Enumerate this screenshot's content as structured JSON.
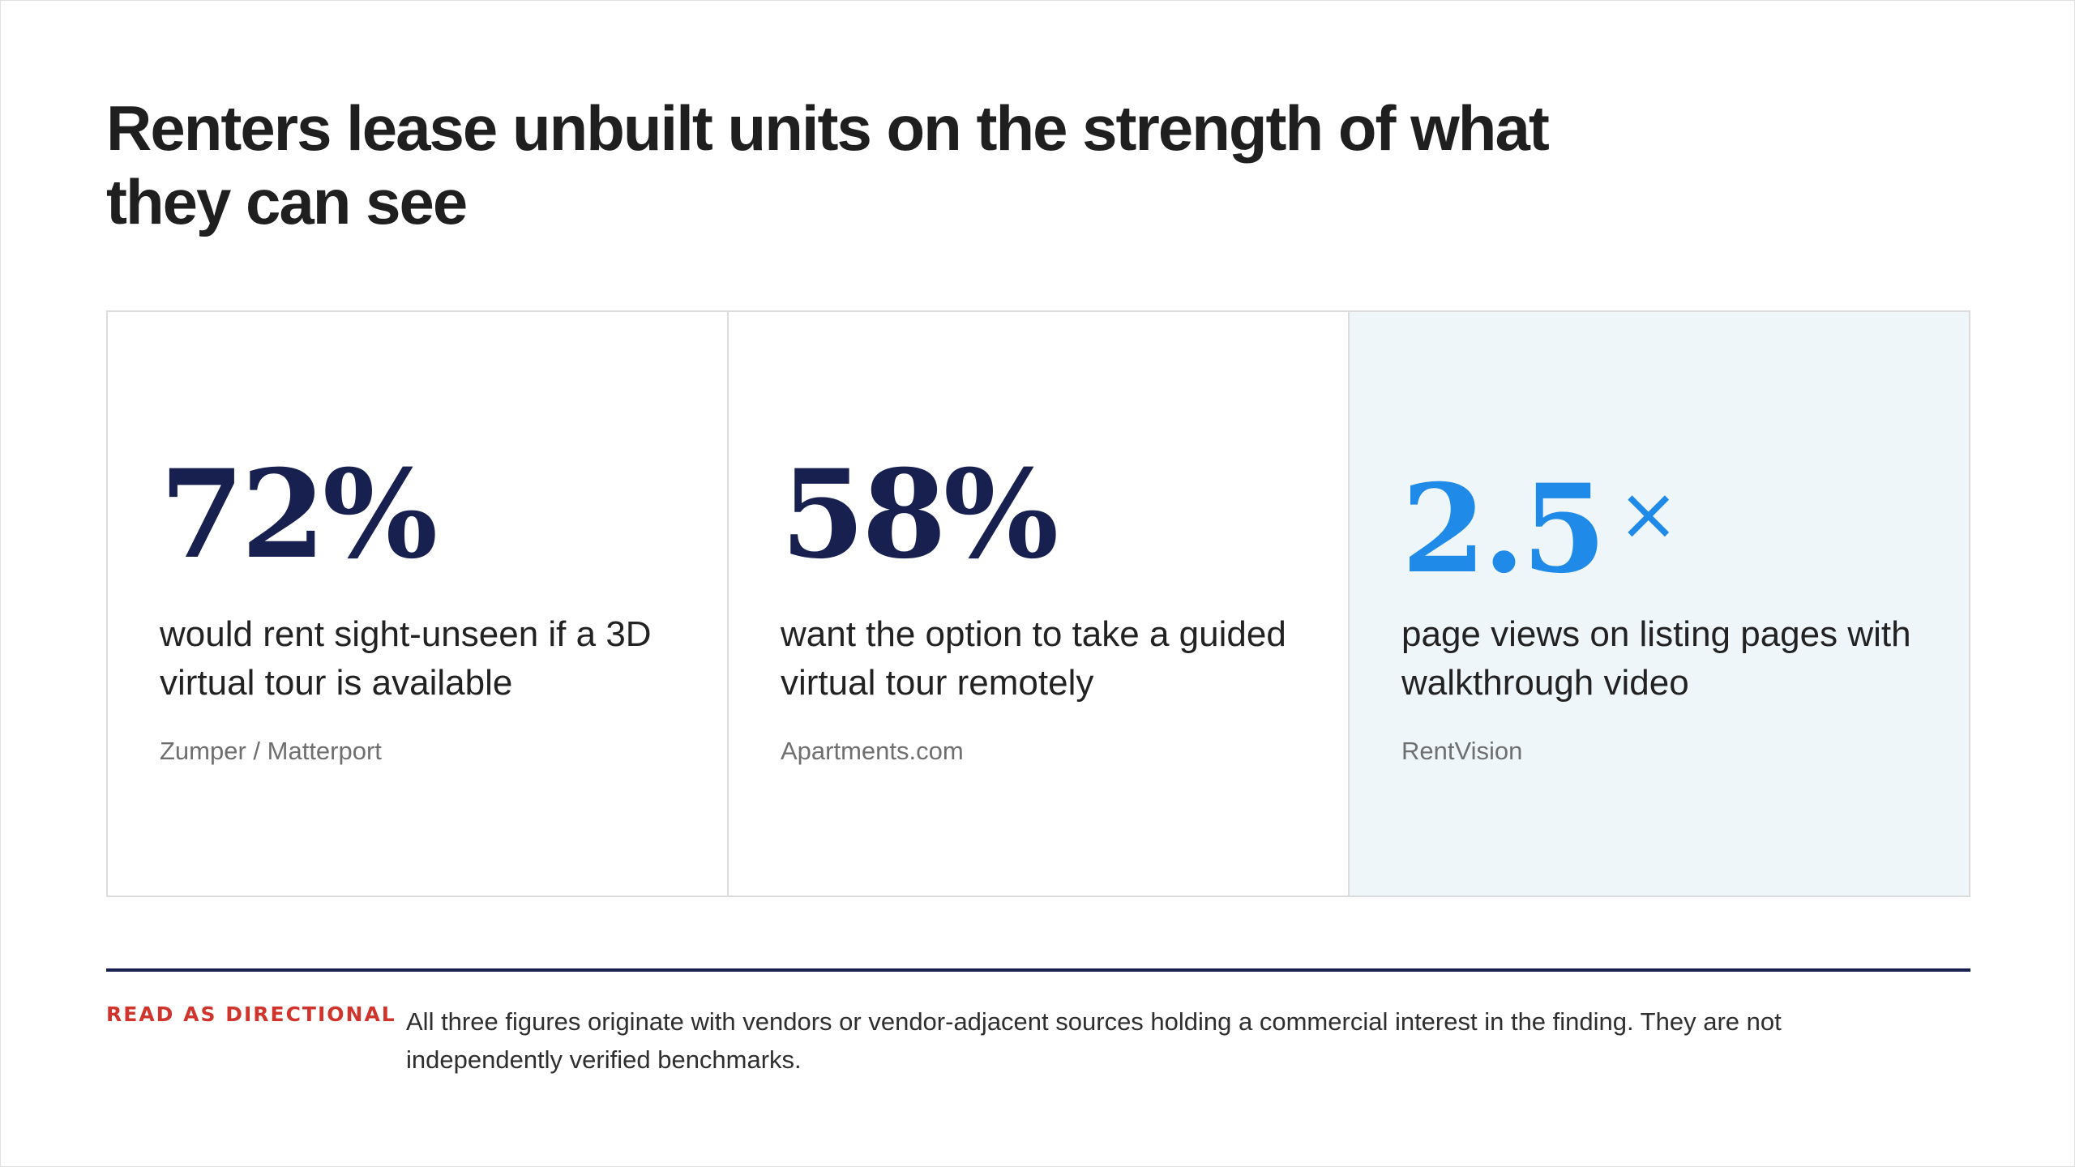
{
  "page": {
    "title": "Renters lease unbuilt units on the strength of what they can see"
  },
  "stats": [
    {
      "value": "72%",
      "suffix": "",
      "description": "would rent sight-unseen if a 3D virtual tour is available",
      "source": "Zumper / Matterport",
      "highlighted": false
    },
    {
      "value": "58%",
      "suffix": "",
      "description": "want the option to take a guided virtual tour remotely",
      "source": "Apartments.com",
      "highlighted": false
    },
    {
      "value": "2.5",
      "suffix": "×",
      "description": "page views on listing pages with walkthrough video",
      "source": "RentVision",
      "highlighted": true
    }
  ],
  "note": {
    "label": "READ AS DIRECTIONAL",
    "text": "All three figures originate with vendors or vendor-adjacent sources holding a commercial interest in the finding. They are not independently verified benchmarks."
  },
  "colors": {
    "stat_primary": "#17204f",
    "stat_accent": "#1f8ae8",
    "highlight_background": "#eff6fa",
    "note_label": "#d0342c",
    "divider": "#17204f"
  }
}
